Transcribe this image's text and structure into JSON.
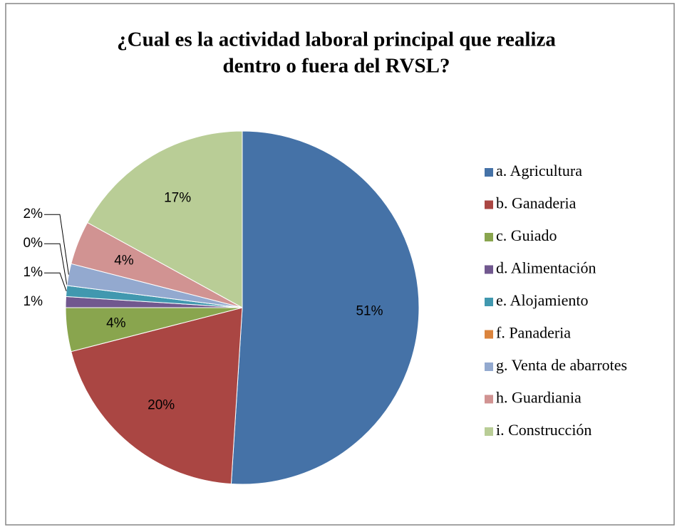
{
  "chart_data": {
    "type": "pie",
    "title": "¿Cual es la actividad laboral principal que realiza",
    "title_line2": "dentro o fuera del RVSL?",
    "categories": [
      "a. Agricultura",
      "b. Ganaderia",
      "c. Guiado",
      "d. Alimentación",
      "e. Alojamiento",
      "f. Panaderia",
      "g. Venta de abarrotes",
      "h. Guardiania",
      "i. Construcción"
    ],
    "values": [
      51,
      20,
      4,
      1,
      1,
      0,
      2,
      4,
      17
    ],
    "value_labels": [
      "51%",
      "20%",
      "4%",
      "1%",
      "1%",
      "0%",
      "2%",
      "4%",
      "17%"
    ],
    "colors": [
      "#4572a7",
      "#aa4643",
      "#89a54e",
      "#71588f",
      "#4198af",
      "#db843d",
      "#93a9cf",
      "#d19392",
      "#b9cd96"
    ],
    "legend": "right"
  }
}
